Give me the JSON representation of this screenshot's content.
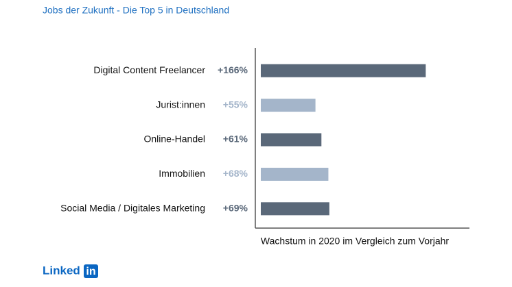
{
  "chart_data": {
    "type": "barh",
    "title": "Jobs der Zukunft - Die Top 5 in Deutschland",
    "x_label": "Wachstum in 2020 im Vergleich zum Vorjahr",
    "categories": [
      "Digital Content Freelancer",
      "Jurist:innen",
      "Online-Handel",
      "Immobilien",
      "Social Media / Digitales Marketing"
    ],
    "values": [
      166,
      55,
      61,
      68,
      69
    ],
    "value_labels": [
      "+166%",
      "+55%",
      "+61%",
      "+68%",
      "+69%"
    ],
    "colors": [
      "#5a6879",
      "#a4b5ca",
      "#5a6879",
      "#a4b5ca",
      "#5a6879"
    ],
    "xlim": [
      0,
      210
    ]
  },
  "footer": {
    "brand": "Linked",
    "brand_box": "in"
  }
}
